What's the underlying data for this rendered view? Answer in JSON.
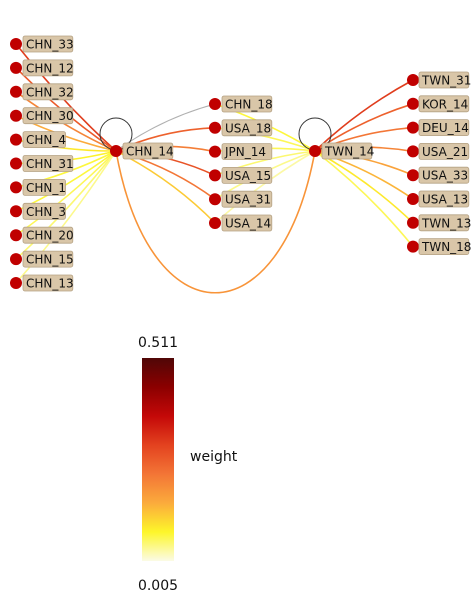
{
  "graph": {
    "hubs": [
      {
        "id": "CHN_14",
        "label": "CHN_14"
      },
      {
        "id": "TWN_14",
        "label": "TWN_14"
      }
    ],
    "left_nodes": [
      {
        "label": "CHN_33",
        "weight": 0.3
      },
      {
        "label": "CHN_12",
        "weight": 0.26
      },
      {
        "label": "CHN_32",
        "weight": 0.2
      },
      {
        "label": "CHN_30",
        "weight": 0.15
      },
      {
        "label": "CHN_4",
        "weight": 0.09
      },
      {
        "label": "CHN_31",
        "weight": 0.08
      },
      {
        "label": "CHN_1",
        "weight": 0.07
      },
      {
        "label": "CHN_3",
        "weight": 0.07
      },
      {
        "label": "CHN_20",
        "weight": 0.06
      },
      {
        "label": "CHN_15",
        "weight": 0.05
      },
      {
        "label": "CHN_13",
        "weight": 0.04
      }
    ],
    "middle_nodes": [
      {
        "label": "CHN_18",
        "w_left": 0.005,
        "w_right": 0.07
      },
      {
        "label": "USA_18",
        "w_left": 0.25,
        "w_right": 0.06
      },
      {
        "label": "JPN_14",
        "w_left": 0.21,
        "w_right": 0.06
      },
      {
        "label": "USA_15",
        "w_left": 0.27,
        "w_right": 0.05
      },
      {
        "label": "USA_31",
        "w_left": 0.22,
        "w_right": 0.04
      },
      {
        "label": "USA_14",
        "w_left": 0.12,
        "w_right": 0.03
      }
    ],
    "right_nodes": [
      {
        "label": "TWN_31",
        "weight": 0.3
      },
      {
        "label": "KOR_14",
        "weight": 0.25
      },
      {
        "label": "DEU_14",
        "weight": 0.22
      },
      {
        "label": "USA_21",
        "weight": 0.2
      },
      {
        "label": "USA_33",
        "weight": 0.16
      },
      {
        "label": "USA_13",
        "weight": 0.14
      },
      {
        "label": "TWN_13",
        "weight": 0.09
      },
      {
        "label": "TWN_18",
        "weight": 0.06
      }
    ],
    "hub_link_weight": 0.18
  },
  "colorbar": {
    "max_label": "0.511",
    "min_label": "0.005",
    "axis_label": "weight",
    "min": 0.005,
    "max": 0.511,
    "stops": [
      "#fbfbe6",
      "#fdf62a",
      "#fbab3c",
      "#f37536",
      "#e3421f",
      "#c40808",
      "#8b0000",
      "#500707"
    ]
  },
  "colors": {
    "node_fill": "#c00000",
    "label_bg": "#d9c6a8",
    "label_border": "#b5a284",
    "self_loop": "#333333",
    "zero_edge": "#b0b0b0"
  }
}
